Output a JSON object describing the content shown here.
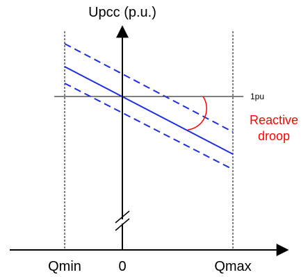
{
  "labels": {
    "y_axis": "Upcc (p.u.)",
    "reference": "1pu",
    "annotation_line1": "Reactive",
    "annotation_line2": "droop",
    "x_min": "Qmin",
    "x_zero": "0",
    "x_max": "Qmax"
  },
  "colors": {
    "axes": "#000000",
    "droop_line": "#1f2ee0",
    "annotation": "#ff0000",
    "guides": "#000000"
  }
}
